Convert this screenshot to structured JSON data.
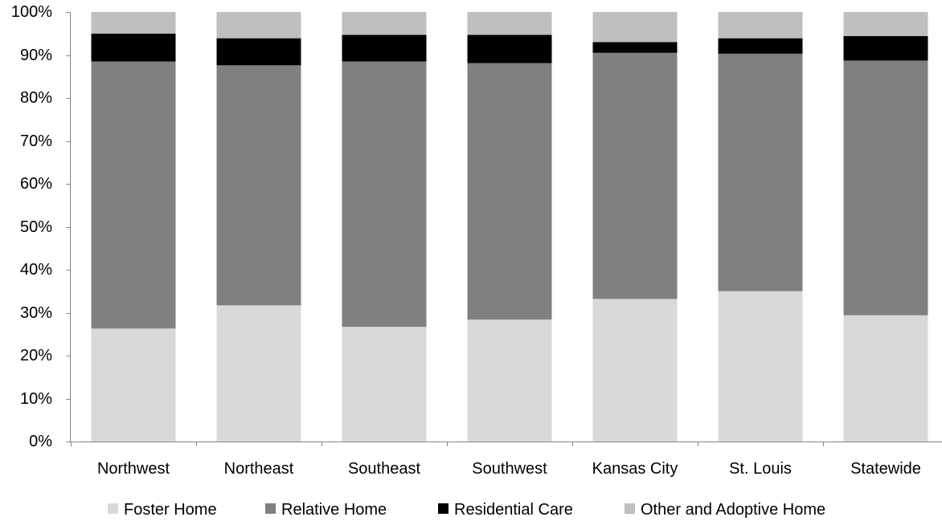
{
  "chart_data": {
    "type": "bar",
    "stacked": true,
    "percent": true,
    "title": "",
    "xlabel": "",
    "ylabel": "",
    "ylim": [
      0,
      100
    ],
    "ytick_values": [
      0,
      10,
      20,
      30,
      40,
      50,
      60,
      70,
      80,
      90,
      100
    ],
    "ytick_labels": [
      "0%",
      "10%",
      "20%",
      "30%",
      "40%",
      "50%",
      "60%",
      "70%",
      "80%",
      "90%",
      "100%"
    ],
    "grid": false,
    "legend_position": "bottom",
    "categories": [
      "Northwest",
      "Northeast",
      "Southeast",
      "Southwest",
      "Kansas City",
      "St. Louis",
      "Statewide"
    ],
    "series": [
      {
        "name": "Foster Home",
        "color": "#d9d9d9",
        "values": [
          26.3,
          31.7,
          26.7,
          28.4,
          33.2,
          35.0,
          29.4
        ]
      },
      {
        "name": "Relative Home",
        "color": "#808080",
        "values": [
          62.2,
          55.9,
          61.8,
          59.7,
          57.3,
          55.3,
          59.3
        ]
      },
      {
        "name": "Residential Care",
        "color": "#000000",
        "values": [
          6.5,
          6.3,
          6.2,
          6.6,
          2.5,
          3.6,
          5.7
        ]
      },
      {
        "name": "Other and Adoptive Home",
        "color": "#bfbfbf",
        "values": [
          5.0,
          6.1,
          5.3,
          5.3,
          7.0,
          6.1,
          5.6
        ]
      }
    ]
  }
}
